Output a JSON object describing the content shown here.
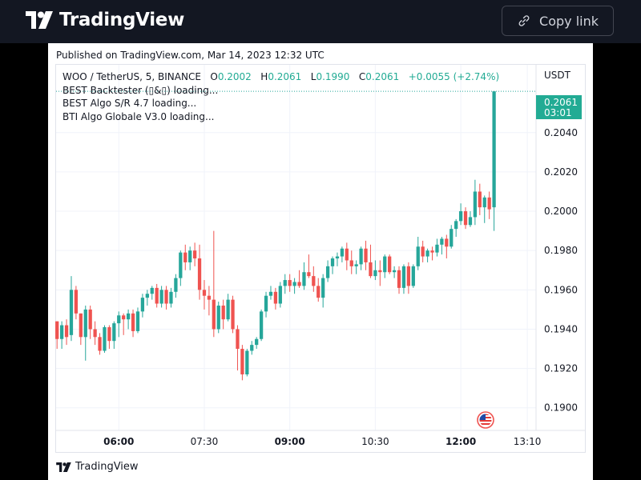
{
  "header": {
    "brand": "TradingView",
    "copy_label": "Copy link"
  },
  "published": "Published on TradingView.com, Mar 14, 2023 12:32 UTC",
  "legend": {
    "symbol": "WOO / TetherUS, 5, BINANCE",
    "o_label": "O",
    "o": "0.2002",
    "h_label": "H",
    "h": "0.2061",
    "l_label": "L",
    "l": "0.1990",
    "c_label": "C",
    "c": "0.2061",
    "change": "+0.0055 (+2.74%)",
    "indicators": [
      "BEST Backtester (▯&▯) loading...",
      "BEST Algo S/R 4.7 loading...",
      "BTI Algo Globale V3.0 loading..."
    ]
  },
  "footer": {
    "brand": "TradingView"
  },
  "colors": {
    "up": "#26a69a",
    "down": "#ef5350",
    "grid": "#f0f3fa",
    "axis_text": "#131722"
  },
  "chart_data": {
    "type": "candlestick",
    "currency": "USDT",
    "y_ticks": [
      "0.2040",
      "0.2020",
      "0.2000",
      "0.1980",
      "0.1960",
      "0.1940",
      "0.1920",
      "0.1900"
    ],
    "y_tick_values": [
      0.204,
      0.202,
      0.2,
      0.198,
      0.196,
      0.194,
      0.192,
      0.19
    ],
    "ylim": [
      0.18885,
      0.20745
    ],
    "x_ticks": [
      "06:00",
      "07:30",
      "09:00",
      "10:30",
      "12:00",
      "13:10"
    ],
    "x_tick_bold": [
      true,
      false,
      true,
      false,
      true,
      false
    ],
    "x_tick_hours": [
      6.0,
      7.5,
      9.0,
      10.5,
      12.0,
      13.1667
    ],
    "x_range_hours": [
      4.9,
      13.32
    ],
    "start_hour": 4.9167,
    "interval_minutes": 5,
    "last_price": "0.2061",
    "countdown": "03:01",
    "candles": [
      [
        0.1944,
        0.1944,
        0.193,
        0.1935
      ],
      [
        0.1935,
        0.1944,
        0.193,
        0.1942
      ],
      [
        0.1942,
        0.1945,
        0.1932,
        0.1936
      ],
      [
        0.1937,
        0.1967,
        0.1934,
        0.196
      ],
      [
        0.196,
        0.1962,
        0.1945,
        0.1948
      ],
      [
        0.1948,
        0.1948,
        0.1932,
        0.1936
      ],
      [
        0.1936,
        0.1952,
        0.1924,
        0.195
      ],
      [
        0.195,
        0.1952,
        0.1935,
        0.194
      ],
      [
        0.194,
        0.1944,
        0.1932,
        0.1936
      ],
      [
        0.1936,
        0.1938,
        0.1927,
        0.1929
      ],
      [
        0.1929,
        0.1942,
        0.1928,
        0.1941
      ],
      [
        0.1941,
        0.1942,
        0.193,
        0.1934
      ],
      [
        0.1934,
        0.1944,
        0.193,
        0.1943
      ],
      [
        0.1943,
        0.1949,
        0.1936,
        0.1947
      ],
      [
        0.1947,
        0.1948,
        0.1937,
        0.1945
      ],
      [
        0.1945,
        0.195,
        0.194,
        0.1948
      ],
      [
        0.1948,
        0.195,
        0.1936,
        0.1939
      ],
      [
        0.1939,
        0.1951,
        0.1938,
        0.1949
      ],
      [
        0.1949,
        0.1958,
        0.1946,
        0.1956
      ],
      [
        0.1956,
        0.196,
        0.1952,
        0.1958
      ],
      [
        0.1958,
        0.1962,
        0.1955,
        0.1961
      ],
      [
        0.1961,
        0.1963,
        0.1951,
        0.1953
      ],
      [
        0.1953,
        0.1962,
        0.1951,
        0.196
      ],
      [
        0.196,
        0.1962,
        0.195,
        0.1953
      ],
      [
        0.1953,
        0.1961,
        0.1951,
        0.1959
      ],
      [
        0.1959,
        0.1968,
        0.1956,
        0.1966
      ],
      [
        0.1966,
        0.198,
        0.1962,
        0.1979
      ],
      [
        0.1979,
        0.1983,
        0.197,
        0.1974
      ],
      [
        0.1974,
        0.1982,
        0.197,
        0.198
      ],
      [
        0.198,
        0.1984,
        0.1972,
        0.1976
      ],
      [
        0.1976,
        0.1983,
        0.1955,
        0.196
      ],
      [
        0.196,
        0.1965,
        0.195,
        0.1957
      ],
      [
        0.1957,
        0.1962,
        0.1947,
        0.1955
      ],
      [
        0.1955,
        0.199,
        0.1936,
        0.194
      ],
      [
        0.194,
        0.1954,
        0.1938,
        0.1952
      ],
      [
        0.1952,
        0.1955,
        0.194,
        0.1945
      ],
      [
        0.1945,
        0.1958,
        0.1944,
        0.1955
      ],
      [
        0.1955,
        0.1957,
        0.1938,
        0.194
      ],
      [
        0.194,
        0.1942,
        0.1919,
        0.193
      ],
      [
        0.193,
        0.1932,
        0.1914,
        0.1917
      ],
      [
        0.1917,
        0.193,
        0.1916,
        0.1929
      ],
      [
        0.1929,
        0.1934,
        0.1927,
        0.1932
      ],
      [
        0.1932,
        0.1936,
        0.193,
        0.1935
      ],
      [
        0.1935,
        0.195,
        0.1934,
        0.1949
      ],
      [
        0.1949,
        0.1959,
        0.1946,
        0.1957
      ],
      [
        0.1957,
        0.1962,
        0.1955,
        0.1959
      ],
      [
        0.1959,
        0.1961,
        0.195,
        0.1953
      ],
      [
        0.1953,
        0.1964,
        0.1951,
        0.1962
      ],
      [
        0.1962,
        0.1968,
        0.1958,
        0.1965
      ],
      [
        0.1965,
        0.1968,
        0.1959,
        0.1962
      ],
      [
        0.1962,
        0.1966,
        0.1958,
        0.1964
      ],
      [
        0.1964,
        0.197,
        0.1961,
        0.1962
      ],
      [
        0.1962,
        0.1974,
        0.196,
        0.1969
      ],
      [
        0.1969,
        0.1978,
        0.1966,
        0.1967
      ],
      [
        0.1967,
        0.1972,
        0.1959,
        0.1962
      ],
      [
        0.1962,
        0.1966,
        0.1954,
        0.1956
      ],
      [
        0.1956,
        0.1968,
        0.1951,
        0.1966
      ],
      [
        0.1966,
        0.1975,
        0.1964,
        0.1972
      ],
      [
        0.1972,
        0.1977,
        0.1968,
        0.1976
      ],
      [
        0.1976,
        0.1979,
        0.1972,
        0.1977
      ],
      [
        0.1977,
        0.1982,
        0.1974,
        0.1981
      ],
      [
        0.1981,
        0.1984,
        0.197,
        0.1975
      ],
      [
        0.1975,
        0.198,
        0.1968,
        0.1972
      ],
      [
        0.1972,
        0.1975,
        0.1968,
        0.1973
      ],
      [
        0.1973,
        0.1982,
        0.197,
        0.1981
      ],
      [
        0.1981,
        0.1985,
        0.197,
        0.1974
      ],
      [
        0.1974,
        0.1983,
        0.1966,
        0.1967
      ],
      [
        0.1967,
        0.1975,
        0.1965,
        0.197
      ],
      [
        0.197,
        0.1975,
        0.1962,
        0.1969
      ],
      [
        0.1969,
        0.1978,
        0.1966,
        0.1977
      ],
      [
        0.1977,
        0.1978,
        0.1968,
        0.1969
      ],
      [
        0.1969,
        0.1972,
        0.1966,
        0.197
      ],
      [
        0.197,
        0.1972,
        0.1958,
        0.1961
      ],
      [
        0.1961,
        0.1973,
        0.1958,
        0.1972
      ],
      [
        0.1972,
        0.1974,
        0.1958,
        0.1962
      ],
      [
        0.1962,
        0.1973,
        0.1961,
        0.1972
      ],
      [
        0.1972,
        0.1987,
        0.197,
        0.1982
      ],
      [
        0.1982,
        0.1985,
        0.1974,
        0.1977
      ],
      [
        0.1977,
        0.1981,
        0.1974,
        0.198
      ],
      [
        0.198,
        0.1982,
        0.1975,
        0.1979
      ],
      [
        0.1979,
        0.1986,
        0.1977,
        0.1983
      ],
      [
        0.1983,
        0.1987,
        0.1978,
        0.1986
      ],
      [
        0.1986,
        0.1988,
        0.1976,
        0.1982
      ],
      [
        0.1982,
        0.1993,
        0.1981,
        0.1991
      ],
      [
        0.1991,
        0.1996,
        0.1987,
        0.1995
      ],
      [
        0.1995,
        0.2004,
        0.1993,
        0.2
      ],
      [
        0.2,
        0.2002,
        0.1991,
        0.1993
      ],
      [
        0.1993,
        0.2,
        0.1992,
        0.1997
      ],
      [
        0.1997,
        0.2016,
        0.1993,
        0.201
      ],
      [
        0.201,
        0.2014,
        0.1998,
        0.2002
      ],
      [
        0.2002,
        0.2008,
        0.1994,
        0.2007
      ],
      [
        0.2007,
        0.201,
        0.1996,
        0.2001
      ],
      [
        0.2002,
        0.2061,
        0.199,
        0.2061
      ]
    ]
  }
}
